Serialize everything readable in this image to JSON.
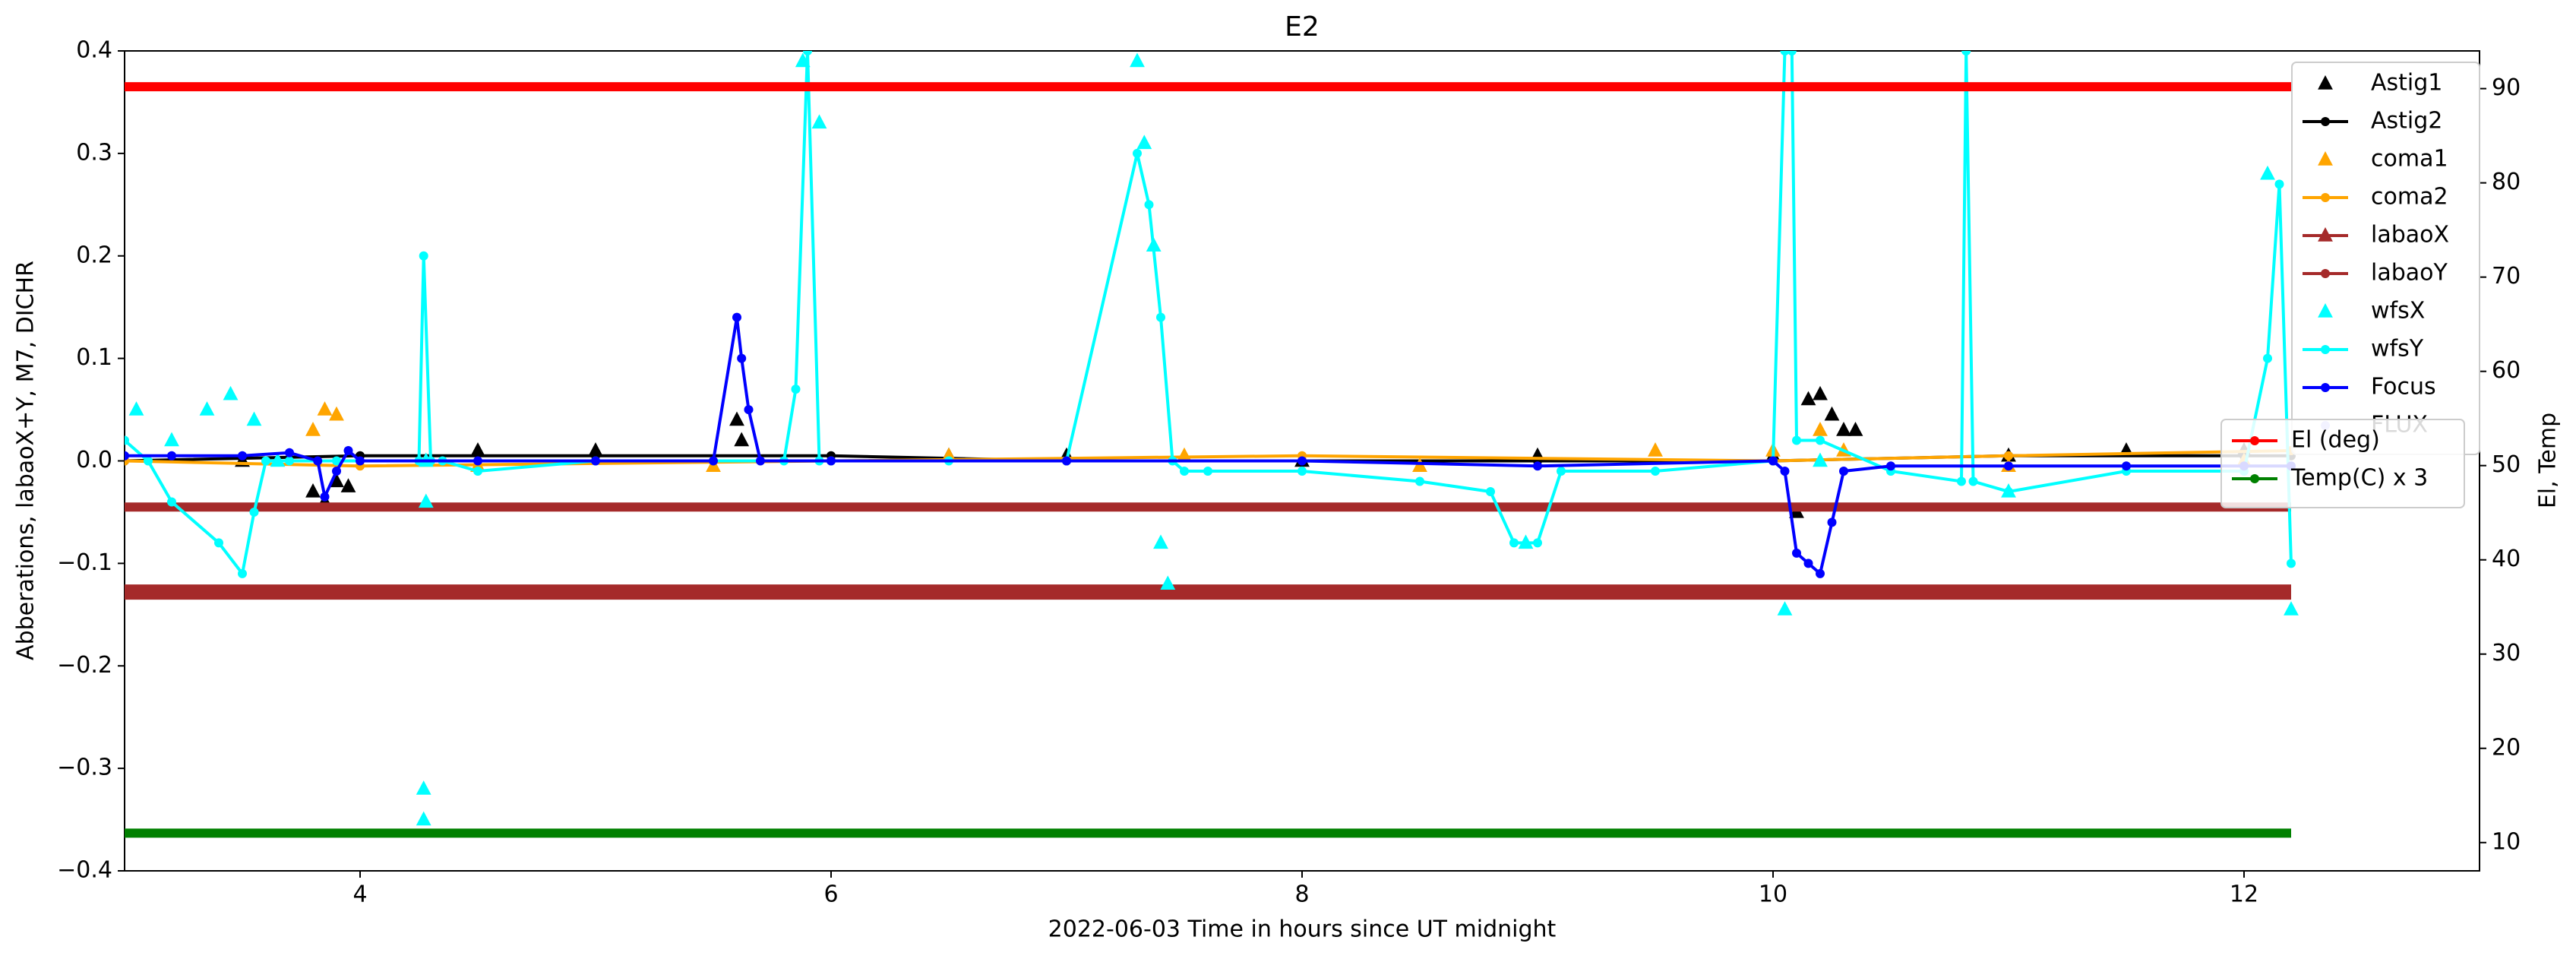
{
  "chart_data": {
    "type": "line",
    "title": "E2",
    "xlabel": "2022-06-03  Time in hours since UT midnight",
    "ylabel": "Abberations, labaoX+Y, M7, DICHR",
    "y2label": "El, Temp",
    "xlim": [
      3,
      13
    ],
    "xticks": [
      4,
      6,
      8,
      10,
      12
    ],
    "ylim": [
      -0.4,
      0.4
    ],
    "yticks": [
      {
        "value": -0.4,
        "label": "−0.4"
      },
      {
        "value": -0.3,
        "label": "−0.3"
      },
      {
        "value": -0.2,
        "label": "−0.2"
      },
      {
        "value": -0.1,
        "label": "−0.1"
      },
      {
        "value": 0.0,
        "label": "0.0"
      },
      0.1,
      0.2,
      0.3,
      0.4
    ],
    "y2lim": [
      7,
      94
    ],
    "y2ticks": [
      10,
      20,
      30,
      40,
      50,
      60,
      70,
      80,
      90
    ],
    "series": [
      {
        "name": "Astig1",
        "color": "#000000",
        "marker": "triangle",
        "line": false,
        "x": [
          3.5,
          3.8,
          3.85,
          3.9,
          3.95,
          4.5,
          5.0,
          5.6,
          5.62,
          6.5,
          7.0,
          8.0,
          9.0,
          10.0,
          10.1,
          10.15,
          10.2,
          10.25,
          10.3,
          10.35,
          11.0,
          11.5,
          12.0
        ],
        "values": [
          0.0,
          -0.03,
          -0.04,
          -0.02,
          -0.025,
          0.01,
          0.01,
          0.04,
          0.02,
          0.005,
          0.005,
          0.0,
          0.005,
          0.005,
          -0.05,
          0.06,
          0.065,
          0.045,
          0.03,
          0.03,
          0.005,
          0.01,
          0.01
        ]
      },
      {
        "name": "Astig2",
        "color": "#000000",
        "marker": "dot",
        "line": true,
        "x": [
          3,
          4,
          5,
          6,
          7,
          8,
          9,
          10,
          11,
          12,
          12.2
        ],
        "values": [
          0.0,
          0.005,
          0.005,
          0.005,
          0.0,
          0.0,
          0.0,
          0.0,
          0.005,
          0.005,
          0.005
        ]
      },
      {
        "name": "coma1",
        "color": "#ffa500",
        "marker": "triangle",
        "line": false,
        "x": [
          3.8,
          3.85,
          3.9,
          4.5,
          5.5,
          6.5,
          7.5,
          8.5,
          9.5,
          10.0,
          10.2,
          10.3,
          11,
          12
        ],
        "values": [
          0.03,
          0.05,
          0.045,
          -0.005,
          -0.005,
          0.005,
          0.005,
          -0.005,
          0.01,
          0.01,
          0.03,
          0.01,
          -0.005,
          0.0
        ]
      },
      {
        "name": "coma2",
        "color": "#ffa500",
        "marker": "dot",
        "line": true,
        "x": [
          3,
          4,
          6,
          8,
          10,
          11,
          12.2
        ],
        "values": [
          0,
          -0.005,
          0,
          0.005,
          0,
          0.005,
          0.01
        ]
      },
      {
        "name": "labaoX",
        "color": "#a52a2a",
        "marker": "triangle",
        "line": true,
        "linewidth": 20,
        "x": [
          3,
          12.2
        ],
        "values": [
          -0.128,
          -0.128
        ]
      },
      {
        "name": "labaoY",
        "color": "#a52a2a",
        "marker": "dot",
        "line": true,
        "linewidth": 12,
        "x": [
          3,
          12.2
        ],
        "values": [
          -0.045,
          -0.045
        ]
      },
      {
        "name": "wfsX",
        "color": "#00ffff",
        "marker": "triangle",
        "line": false,
        "x": [
          3.05,
          3.2,
          3.35,
          3.45,
          3.55,
          3.65,
          4.27,
          4.27,
          4.28,
          4.28,
          5.88,
          5.95,
          7.3,
          7.33,
          7.37,
          7.4,
          7.43,
          8.95,
          10.05,
          10.2,
          11.0,
          12.1,
          12.2
        ],
        "values": [
          0.05,
          0.02,
          0.05,
          0.065,
          0.04,
          0.0,
          -0.32,
          -0.35,
          -0.04,
          0.0,
          0.39,
          0.33,
          0.39,
          0.31,
          0.21,
          -0.08,
          -0.12,
          -0.08,
          -0.145,
          0.0,
          -0.03,
          0.28,
          -0.145
        ]
      },
      {
        "name": "wfsY",
        "color": "#00ffff",
        "marker": "dot",
        "line": true,
        "x": [
          3.0,
          3.1,
          3.2,
          3.4,
          3.5,
          3.55,
          3.6,
          3.7,
          3.9,
          4.25,
          4.27,
          4.3,
          4.35,
          4.5,
          5.0,
          5.8,
          5.85,
          5.9,
          5.95,
          6.0,
          6.5,
          7.0,
          7.3,
          7.35,
          7.4,
          7.45,
          7.5,
          7.6,
          8.0,
          8.5,
          8.8,
          8.9,
          9.0,
          9.1,
          9.5,
          10.0,
          10.05,
          10.08,
          10.1,
          10.2,
          10.5,
          10.8,
          10.82,
          10.85,
          11.0,
          11.5,
          12.0,
          12.1,
          12.15,
          12.2
        ],
        "values": [
          0.02,
          0.0,
          -0.04,
          -0.08,
          -0.11,
          -0.05,
          0.0,
          0.0,
          0.0,
          0.0,
          0.2,
          0.0,
          0.0,
          -0.01,
          0.0,
          0.0,
          0.07,
          0.4,
          0.0,
          0.0,
          0.0,
          0.0,
          0.3,
          0.25,
          0.14,
          0.0,
          -0.01,
          -0.01,
          -0.01,
          -0.02,
          -0.03,
          -0.08,
          -0.08,
          -0.01,
          -0.01,
          0.0,
          0.4,
          0.4,
          0.02,
          0.02,
          -0.01,
          -0.02,
          0.4,
          -0.02,
          -0.03,
          -0.01,
          -0.01,
          0.1,
          0.27,
          -0.1
        ]
      },
      {
        "name": "Focus",
        "color": "#0000ff",
        "marker": "dot",
        "line": true,
        "x": [
          3,
          3.2,
          3.5,
          3.7,
          3.82,
          3.85,
          3.9,
          3.95,
          4.0,
          4.5,
          5.0,
          5.5,
          5.6,
          5.62,
          5.65,
          5.7,
          6.0,
          7.0,
          8.0,
          9.0,
          10.0,
          10.05,
          10.1,
          10.15,
          10.2,
          10.25,
          10.3,
          10.5,
          11.0,
          11.5,
          12.0,
          12.2
        ],
        "values": [
          0.005,
          0.005,
          0.005,
          0.008,
          0.0,
          -0.035,
          -0.01,
          0.01,
          0.0,
          0.0,
          0.0,
          0.0,
          0.14,
          0.1,
          0.05,
          0.0,
          0.0,
          0.0,
          0.0,
          -0.005,
          0.0,
          -0.01,
          -0.09,
          -0.1,
          -0.11,
          -0.06,
          -0.01,
          -0.005,
          -0.005,
          -0.005,
          -0.005,
          -0.005
        ]
      },
      {
        "name": "FLUX",
        "color": "#aaaaff",
        "marker": "dot",
        "line": false,
        "x": [],
        "values": []
      }
    ],
    "series2": [
      {
        "name": "El (deg)",
        "color": "#ff0000",
        "marker": "dot",
        "line": true,
        "linewidth": 12,
        "axis": "y2",
        "x": [
          3,
          12.2
        ],
        "values": [
          90.2,
          90.2
        ]
      },
      {
        "name": "Temp(C) x 3",
        "color": "#008000",
        "marker": "dot",
        "line": true,
        "linewidth": 12,
        "axis": "y2",
        "x": [
          3,
          12.2
        ],
        "values": [
          11,
          11
        ]
      }
    ]
  }
}
